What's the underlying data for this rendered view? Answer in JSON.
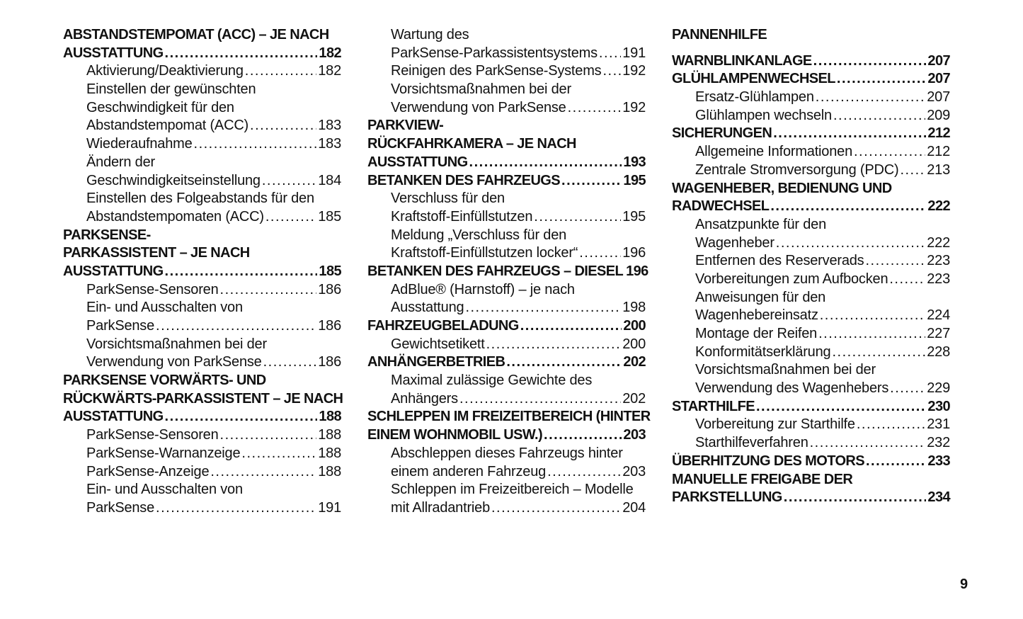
{
  "columns": [
    [
      {
        "t": "h",
        "lines": [
          "ABSTANDSTEMPOMAT (ACC) – JE NACH",
          "AUSSTATTUNG"
        ],
        "page": "182"
      },
      {
        "t": "s",
        "lines": [
          "Aktivierung/Deaktivierung"
        ],
        "page": "182"
      },
      {
        "t": "s",
        "lines": [
          "Einstellen der gewünschten",
          "Geschwindigkeit für den",
          "Abstandstempomat (ACC)"
        ],
        "page": "183"
      },
      {
        "t": "s",
        "lines": [
          "Wiederaufnahme"
        ],
        "page": "183"
      },
      {
        "t": "s",
        "lines": [
          "Ändern der",
          "Geschwindigkeitseinstellung"
        ],
        "page": "184"
      },
      {
        "t": "s",
        "lines": [
          "Einstellen des Folgeabstands für den",
          "Abstandstempomaten (ACC)"
        ],
        "page": "185"
      },
      {
        "t": "h",
        "lines": [
          "PARKSENSE-",
          "PARKASSISTENT – JE NACH",
          "AUSSTATTUNG"
        ],
        "page": "185"
      },
      {
        "t": "s",
        "lines": [
          "ParkSense-Sensoren"
        ],
        "page": "186"
      },
      {
        "t": "s",
        "lines": [
          "Ein- und Ausschalten von",
          "ParkSense"
        ],
        "page": "186"
      },
      {
        "t": "s",
        "lines": [
          "Vorsichtsmaßnahmen bei der",
          "Verwendung von ParkSense"
        ],
        "page": "186"
      },
      {
        "t": "h",
        "lines": [
          "PARKSENSE VORWÄRTS- UND",
          "RÜCKWÄRTS-PARKASSISTENT – JE NACH",
          "AUSSTATTUNG"
        ],
        "page": "188"
      },
      {
        "t": "s",
        "lines": [
          "ParkSense-Sensoren"
        ],
        "page": "188"
      },
      {
        "t": "s",
        "lines": [
          "ParkSense-Warnanzeige"
        ],
        "page": "188"
      },
      {
        "t": "s",
        "lines": [
          "ParkSense-Anzeige"
        ],
        "page": "188"
      },
      {
        "t": "s",
        "lines": [
          "Ein- und Ausschalten von",
          "ParkSense"
        ],
        "page": "191"
      }
    ],
    [
      {
        "t": "s",
        "lines": [
          "Wartung des",
          "ParkSense-Parkassistentsystems"
        ],
        "page": "191"
      },
      {
        "t": "s",
        "lines": [
          "Reinigen des ParkSense-Systems"
        ],
        "page": "192"
      },
      {
        "t": "s",
        "lines": [
          "Vorsichtsmaßnahmen bei der",
          "Verwendung von ParkSense"
        ],
        "page": "192"
      },
      {
        "t": "h",
        "lines": [
          "PARKVIEW-",
          "RÜCKFAHRKAMERA – JE NACH",
          "AUSSTATTUNG"
        ],
        "page": "193"
      },
      {
        "t": "h",
        "lines": [
          "BETANKEN DES FAHRZEUGS"
        ],
        "page": "195"
      },
      {
        "t": "s",
        "lines": [
          "Verschluss für den",
          "Kraftstoff-Einfüllstutzen"
        ],
        "page": "195"
      },
      {
        "t": "s",
        "lines": [
          "Meldung „Verschluss für den",
          "Kraftstoff-Einfüllstutzen locker“"
        ],
        "page": "196"
      },
      {
        "t": "h",
        "lines": [
          "BETANKEN DES FAHRZEUGS – DIESEL"
        ],
        "page": "196"
      },
      {
        "t": "s",
        "lines": [
          "AdBlue® (Harnstoff) – je nach",
          "Ausstattung"
        ],
        "page": "198"
      },
      {
        "t": "h",
        "lines": [
          "FAHRZEUGBELADUNG"
        ],
        "page": "200"
      },
      {
        "t": "s",
        "lines": [
          "Gewichtsetikett"
        ],
        "page": "200"
      },
      {
        "t": "h",
        "lines": [
          "ANHÄNGERBETRIEB"
        ],
        "page": "202"
      },
      {
        "t": "s",
        "lines": [
          "Maximal zulässige Gewichte des",
          "Anhängers"
        ],
        "page": "202"
      },
      {
        "t": "h",
        "lines": [
          "SCHLEPPEN IM FREIZEITBEREICH (HINTER",
          "EINEM WOHNMOBIL USW.)"
        ],
        "page": "203"
      },
      {
        "t": "s",
        "lines": [
          "Abschleppen dieses Fahrzeugs hinter",
          "einem anderen Fahrzeug"
        ],
        "page": "203"
      },
      {
        "t": "s",
        "lines": [
          "Schleppen im Freizeitbereich – Modelle",
          "mit Allradantrieb"
        ],
        "page": "204"
      }
    ],
    [
      {
        "t": "h",
        "lines": [
          "PANNENHILFE"
        ],
        "page": ""
      },
      {
        "t": "gap"
      },
      {
        "t": "h",
        "lines": [
          "WARNBLINKANLAGE"
        ],
        "page": "207"
      },
      {
        "t": "h",
        "lines": [
          "GLÜHLAMPENWECHSEL"
        ],
        "page": "207"
      },
      {
        "t": "s",
        "lines": [
          "Ersatz-Glühlampen"
        ],
        "page": "207"
      },
      {
        "t": "s",
        "lines": [
          "Glühlampen wechseln"
        ],
        "page": "209"
      },
      {
        "t": "h",
        "lines": [
          "SICHERUNGEN"
        ],
        "page": "212"
      },
      {
        "t": "s",
        "lines": [
          "Allgemeine Informationen"
        ],
        "page": "212"
      },
      {
        "t": "s",
        "lines": [
          "Zentrale Stromversorgung (PDC)"
        ],
        "page": "213"
      },
      {
        "t": "h",
        "lines": [
          "WAGENHEBER, BEDIENUNG UND",
          "RADWECHSEL"
        ],
        "page": "222"
      },
      {
        "t": "s",
        "lines": [
          "Ansatzpunkte für den",
          "Wagenheber"
        ],
        "page": "222"
      },
      {
        "t": "s",
        "lines": [
          "Entfernen des Reserverads"
        ],
        "page": "223"
      },
      {
        "t": "s",
        "lines": [
          "Vorbereitungen zum Aufbocken"
        ],
        "page": "223"
      },
      {
        "t": "s",
        "lines": [
          "Anweisungen für den",
          "Wagenhebereinsatz"
        ],
        "page": "224"
      },
      {
        "t": "s",
        "lines": [
          "Montage der Reifen"
        ],
        "page": "227"
      },
      {
        "t": "s",
        "lines": [
          "Konformitätserklärung"
        ],
        "page": "228"
      },
      {
        "t": "s",
        "lines": [
          "Vorsichtsmaßnahmen bei der",
          "Verwendung des Wagenhebers"
        ],
        "page": "229"
      },
      {
        "t": "h",
        "lines": [
          "STARTHILFE"
        ],
        "page": "230"
      },
      {
        "t": "s",
        "lines": [
          "Vorbereitung zur Starthilfe"
        ],
        "page": "231"
      },
      {
        "t": "s",
        "lines": [
          "Starthilfeverfahren"
        ],
        "page": "232"
      },
      {
        "t": "h",
        "lines": [
          "ÜBERHITZUNG DES MOTORS"
        ],
        "page": "233"
      },
      {
        "t": "h",
        "lines": [
          "MANUELLE FREIGABE DER",
          "PARKSTELLUNG"
        ],
        "page": "234"
      }
    ]
  ],
  "page_number": "9"
}
